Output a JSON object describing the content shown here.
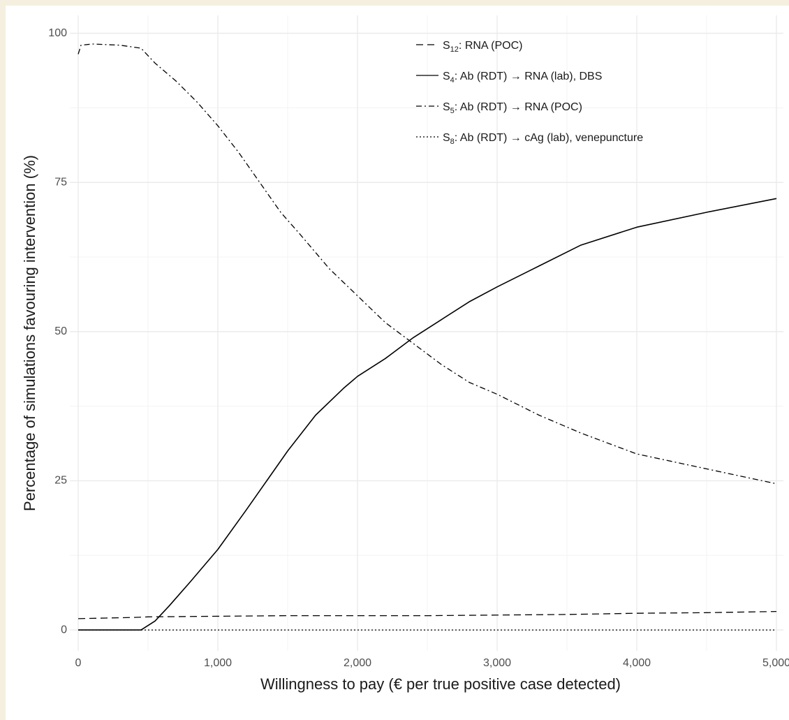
{
  "chart_data": {
    "type": "line",
    "title": "",
    "xlabel": "Willingness to pay (€ per true positive case detected)",
    "ylabel": "Percentage of simulations favouring intervention (%)",
    "xlim": [
      -60,
      5050
    ],
    "ylim": [
      -3.5,
      103
    ],
    "x_ticks": [
      0,
      1000,
      2000,
      3000,
      4000,
      5000
    ],
    "x_tick_labels": [
      "0",
      "1,000",
      "2,000",
      "3,000",
      "4,000",
      "5,000"
    ],
    "y_ticks": [
      0,
      25,
      50,
      75,
      100
    ],
    "y_tick_labels": [
      "0",
      "25",
      "50",
      "75",
      "100"
    ],
    "grid": true,
    "legend_position": "top-right",
    "series": [
      {
        "name_main": "S",
        "name_sub": "12",
        "name_rest": ": RNA (POC)",
        "dash": "dashed",
        "x": [
          0,
          200,
          400,
          500,
          1000,
          1500,
          2000,
          2500,
          3000,
          3500,
          4000,
          4500,
          5000
        ],
        "y": [
          1.9,
          2.0,
          2.1,
          2.2,
          2.3,
          2.4,
          2.4,
          2.4,
          2.5,
          2.6,
          2.8,
          2.9,
          3.1
        ]
      },
      {
        "name_main": "S",
        "name_sub": "4",
        "name_rest": ": Ab (RDT) → RNA (lab), DBS",
        "dash": "solid",
        "x": [
          0,
          450,
          550,
          650,
          800,
          1000,
          1200,
          1350,
          1500,
          1700,
          1900,
          2000,
          2200,
          2400,
          2600,
          2800,
          3000,
          3300,
          3600,
          4000,
          4500,
          5000
        ],
        "y": [
          0,
          0,
          1.5,
          4,
          8,
          13.5,
          20,
          25,
          30,
          36,
          40.5,
          42.5,
          45.5,
          49,
          52,
          55,
          57.5,
          61,
          64.5,
          67.5,
          70,
          72.3
        ]
      },
      {
        "name_main": "S",
        "name_sub": "5",
        "name_rest": ": Ab (RDT) → RNA (POC)",
        "dash": "dotdash",
        "x": [
          0,
          20,
          100,
          300,
          450,
          550,
          700,
          850,
          1000,
          1150,
          1300,
          1450,
          1600,
          1800,
          2000,
          2200,
          2400,
          2600,
          2800,
          3000,
          3300,
          3600,
          4000,
          4500,
          5000
        ],
        "y": [
          96.5,
          98,
          98.2,
          98,
          97.5,
          95,
          92,
          88.5,
          84.5,
          80,
          75,
          70,
          66,
          60.5,
          56,
          51.5,
          48,
          44.5,
          41.5,
          39.5,
          36,
          33,
          29.5,
          27,
          24.5
        ]
      },
      {
        "name_main": "S",
        "name_sub": "8",
        "name_rest": ": Ab (RDT) → cAg (lab), venepuncture",
        "dash": "dotted",
        "x": [
          0,
          5000
        ],
        "y": [
          0,
          0
        ]
      }
    ]
  }
}
